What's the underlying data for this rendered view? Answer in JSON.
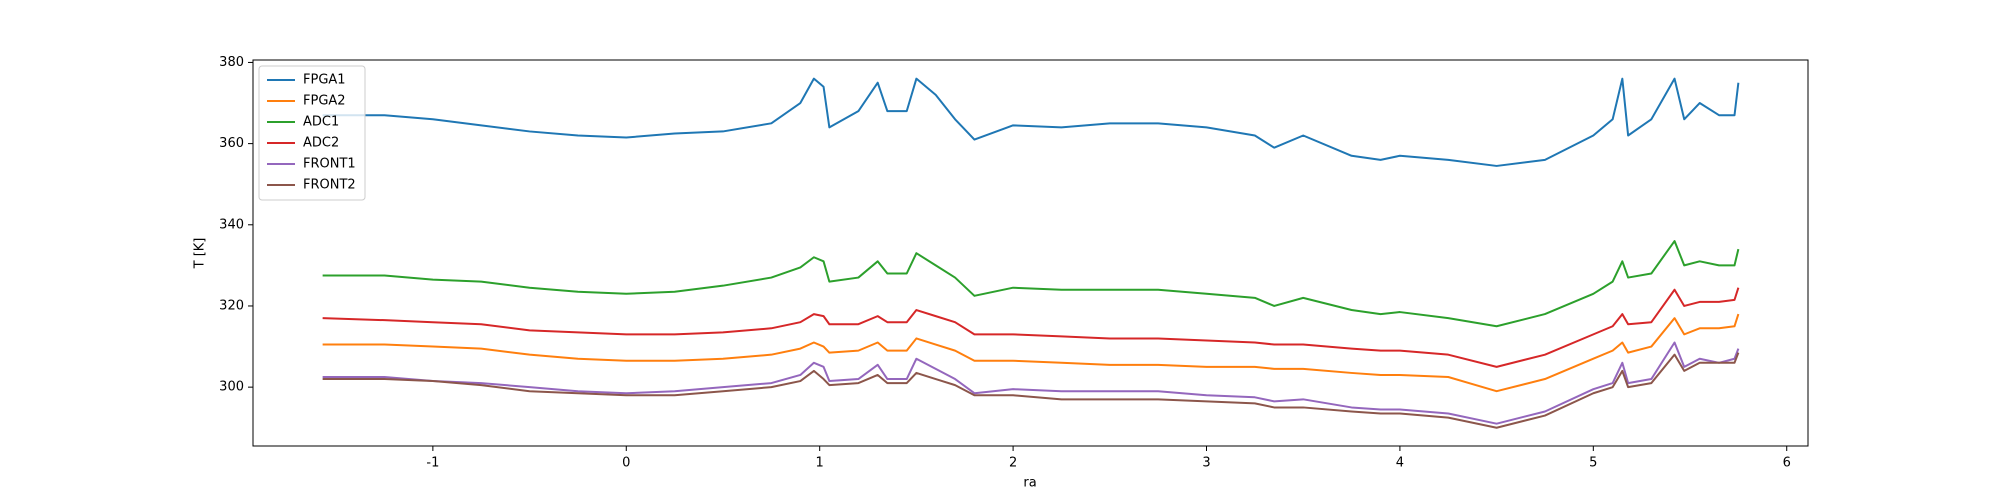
{
  "chart_data": {
    "type": "line",
    "x_label": "ra",
    "y_label": "T [K]",
    "x": [
      -1.57,
      -1.25,
      -1.0,
      -0.75,
      -0.5,
      -0.25,
      0,
      0.25,
      0.5,
      0.75,
      0.9,
      0.97,
      1.02,
      1.05,
      1.2,
      1.3,
      1.35,
      1.45,
      1.5,
      1.6,
      1.7,
      1.8,
      2.0,
      2.25,
      2.5,
      2.75,
      3.0,
      3.25,
      3.35,
      3.5,
      3.75,
      3.9,
      4.0,
      4.25,
      4.5,
      4.75,
      5.0,
      5.1,
      5.15,
      5.18,
      5.3,
      5.42,
      5.47,
      5.55,
      5.65,
      5.73,
      5.75
    ],
    "series": [
      {
        "name": "FPGA1",
        "color": "#1f77b4",
        "values": [
          367,
          367,
          366,
          364.5,
          363,
          362,
          361.5,
          362.5,
          363,
          365,
          370,
          376,
          374,
          364,
          368,
          375,
          368,
          368,
          376,
          372,
          366,
          361,
          364.5,
          364,
          365,
          365,
          364,
          362,
          359,
          362,
          357,
          356,
          357,
          356,
          354.5,
          356,
          362,
          366,
          376,
          362,
          366,
          376,
          366,
          370,
          367,
          367,
          375
        ]
      },
      {
        "name": "FPGA2",
        "color": "#ff7f0e",
        "values": [
          310.5,
          310.5,
          310,
          309.5,
          308,
          307,
          306.5,
          306.5,
          307,
          308,
          309.5,
          311,
          310,
          308.5,
          309,
          311,
          309,
          309,
          312,
          310.5,
          309,
          306.5,
          306.5,
          306,
          305.5,
          305.5,
          305,
          305,
          304.5,
          304.5,
          303.5,
          303,
          303,
          302.5,
          299,
          302,
          307,
          309,
          311,
          308.5,
          310,
          317,
          313,
          314.5,
          314.5,
          315,
          318
        ]
      },
      {
        "name": "ADC1",
        "color": "#2ca02c",
        "values": [
          327.5,
          327.5,
          326.5,
          326,
          324.5,
          323.5,
          323,
          323.5,
          325,
          327,
          329.5,
          332,
          331,
          326,
          327,
          331,
          328,
          328,
          333,
          330,
          327,
          322.5,
          324.5,
          324,
          324,
          324,
          323,
          322,
          320,
          322,
          319,
          318,
          318.5,
          317,
          315,
          318,
          323,
          326,
          331,
          327,
          328,
          336,
          330,
          331,
          330,
          330,
          334
        ]
      },
      {
        "name": "ADC2",
        "color": "#d62728",
        "values": [
          317,
          316.5,
          316,
          315.5,
          314,
          313.5,
          313,
          313,
          313.5,
          314.5,
          316,
          318,
          317.5,
          315.5,
          315.5,
          317.5,
          316,
          316,
          319,
          317.5,
          316,
          313,
          313,
          312.5,
          312,
          312,
          311.5,
          311,
          310.5,
          310.5,
          309.5,
          309,
          309,
          308,
          305,
          308,
          313,
          315,
          318,
          315.5,
          316,
          324,
          320,
          321,
          321,
          321.5,
          324.5
        ]
      },
      {
        "name": "FRONT1",
        "color": "#9467bd",
        "values": [
          302.5,
          302.5,
          301.5,
          301,
          300,
          299,
          298.5,
          299,
          300,
          301,
          303,
          306,
          305,
          301.5,
          302,
          305.5,
          302,
          302,
          307,
          304.5,
          302,
          298.5,
          299.5,
          299,
          299,
          299,
          298,
          297.5,
          296.5,
          297,
          295,
          294.5,
          294.5,
          293.5,
          291,
          294,
          299.5,
          301,
          306,
          301,
          302,
          311,
          305,
          307,
          306,
          307,
          309.5
        ]
      },
      {
        "name": "FRONT2",
        "color": "#8c564b",
        "values": [
          302,
          302,
          301.5,
          300.5,
          299,
          298.5,
          298,
          298,
          299,
          300,
          301.5,
          304,
          302,
          300.5,
          301,
          303,
          301,
          301,
          303.5,
          302,
          300.5,
          298,
          298,
          297,
          297,
          297,
          296.5,
          296,
          295,
          295,
          294,
          293.5,
          293.5,
          292.5,
          290,
          293,
          298.5,
          300,
          304,
          300,
          301,
          308,
          304,
          306,
          306,
          306,
          308.5
        ]
      }
    ],
    "xlim": [
      -1.93,
      6.11
    ],
    "xticks": [
      -1,
      0,
      1,
      2,
      3,
      4,
      5,
      6
    ],
    "ylim": [
      285.5,
      380.6
    ],
    "yticks": [
      300,
      320,
      340,
      360,
      380
    ],
    "legend": "upper left"
  }
}
